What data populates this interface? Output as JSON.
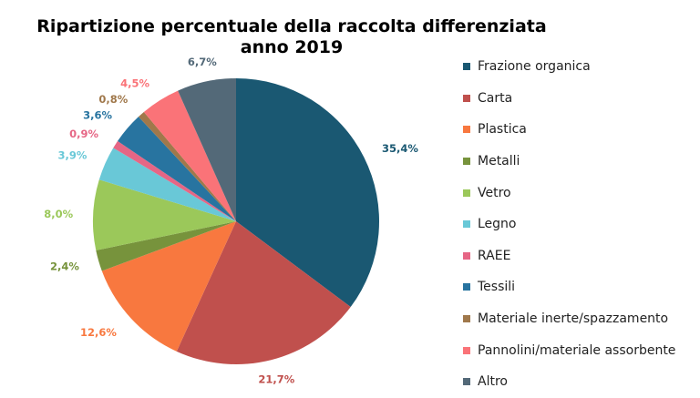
{
  "chart_data": {
    "type": "pie",
    "title": "Ripartizione percentuale della raccolta differenziata anno 2019",
    "title_lines": [
      "Ripartizione percentuale della raccolta differenziata",
      "anno 2019"
    ],
    "legend_position": "right",
    "slices": [
      {
        "name": "Frazione organica",
        "value": 35.4,
        "label": "35,4%",
        "color": "#1a5872"
      },
      {
        "name": "Carta",
        "value": 21.7,
        "label": "21,7%",
        "color": "#c0504d"
      },
      {
        "name": "Plastica",
        "value": 12.6,
        "label": "12,6%",
        "color": "#f8783f"
      },
      {
        "name": "Metalli",
        "value": 2.4,
        "label": "2,4%",
        "color": "#77933c"
      },
      {
        "name": "Vetro",
        "value": 8.0,
        "label": "8,0%",
        "color": "#9bc85a"
      },
      {
        "name": "Legno",
        "value": 3.9,
        "label": "3,9%",
        "color": "#69c8d7"
      },
      {
        "name": "RAEE",
        "value": 0.9,
        "label": "0,9%",
        "color": "#e66685"
      },
      {
        "name": "Tessili",
        "value": 3.6,
        "label": "3,6%",
        "color": "#2874a0"
      },
      {
        "name": "Materiale inerte/spazzamento",
        "value": 0.8,
        "label": "0,8%",
        "color": "#a0784b"
      },
      {
        "name": "Pannolini/materiale assorbente",
        "value": 4.5,
        "label": "4,5%",
        "color": "#fa7378"
      },
      {
        "name": "Altro",
        "value": 6.7,
        "label": "6,7%",
        "color": "#536978"
      }
    ]
  }
}
